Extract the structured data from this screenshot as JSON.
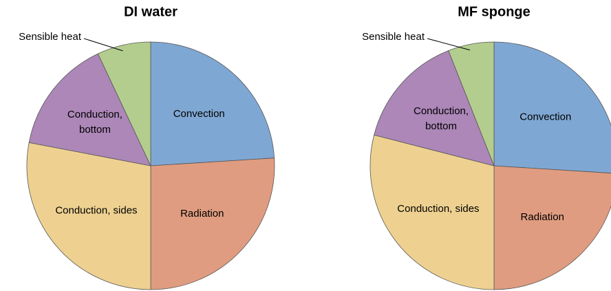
{
  "chart_data": [
    {
      "type": "pie",
      "title": "DI water",
      "categories": [
        "Convection",
        "Radiation",
        "Conduction, sides",
        "Conduction, bottom",
        "Sensible heat"
      ],
      "values": [
        24,
        26,
        28,
        15,
        7
      ],
      "colors": [
        "#7fa7d3",
        "#e09c80",
        "#eed191",
        "#ac87b8",
        "#b3cd8e"
      ]
    },
    {
      "type": "pie",
      "title": "MF sponge",
      "categories": [
        "Convection",
        "Radiation",
        "Conduction, sides",
        "Conduction, bottom",
        "Sensible heat"
      ],
      "values": [
        26,
        24,
        29,
        15,
        6
      ],
      "colors": [
        "#7fa7d3",
        "#e09c80",
        "#eed191",
        "#ac87b8",
        "#b3cd8e"
      ]
    }
  ]
}
